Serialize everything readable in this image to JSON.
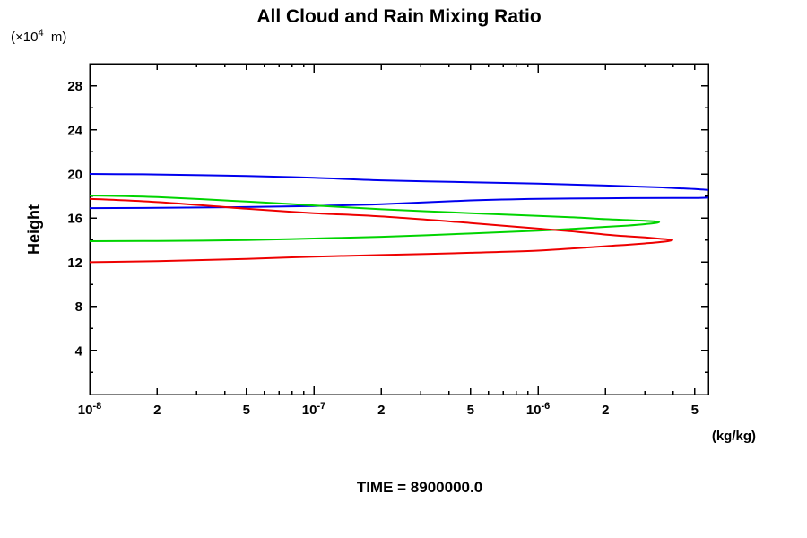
{
  "header": {
    "title": "All Cloud and Rain Mixing Ratio"
  },
  "axes": {
    "y_unit_label": "(×10^{4}  m)",
    "y_axis_label": "Height",
    "x_unit_label": "(kg/kg)"
  },
  "footer": {
    "time_label": "TIME = 8900000.0"
  },
  "chart_data": {
    "type": "line",
    "title": "All Cloud and Rain Mixing Ratio",
    "xlabel": "(kg/kg)",
    "ylabel": "Height (x10^4 m)",
    "x_scale": "log",
    "xlim": [
      1e-08,
      5.75e-06
    ],
    "ylim": [
      0,
      30
    ],
    "grid": false,
    "legend": "none",
    "x_ticks": [
      {
        "v": 1e-08,
        "label": "10^{-8}",
        "kind": "major"
      },
      {
        "v": 2e-08,
        "label": "2",
        "kind": "labeled"
      },
      {
        "v": 3e-08,
        "kind": "minor"
      },
      {
        "v": 4e-08,
        "kind": "minor"
      },
      {
        "v": 5e-08,
        "label": "5",
        "kind": "labeled"
      },
      {
        "v": 6e-08,
        "kind": "minor"
      },
      {
        "v": 7e-08,
        "kind": "minor"
      },
      {
        "v": 8e-08,
        "kind": "minor"
      },
      {
        "v": 9e-08,
        "kind": "minor"
      },
      {
        "v": 1e-07,
        "label": "10^{-7}",
        "kind": "major"
      },
      {
        "v": 2e-07,
        "label": "2",
        "kind": "labeled"
      },
      {
        "v": 3e-07,
        "kind": "minor"
      },
      {
        "v": 4e-07,
        "kind": "minor"
      },
      {
        "v": 5e-07,
        "label": "5",
        "kind": "labeled"
      },
      {
        "v": 6e-07,
        "kind": "minor"
      },
      {
        "v": 7e-07,
        "kind": "minor"
      },
      {
        "v": 8e-07,
        "kind": "minor"
      },
      {
        "v": 9e-07,
        "kind": "minor"
      },
      {
        "v": 1e-06,
        "label": "10^{-6}",
        "kind": "major"
      },
      {
        "v": 2e-06,
        "label": "2",
        "kind": "labeled"
      },
      {
        "v": 3e-06,
        "kind": "minor"
      },
      {
        "v": 4e-06,
        "kind": "minor"
      },
      {
        "v": 5e-06,
        "label": "5",
        "kind": "labeled"
      }
    ],
    "y_major_ticks": [
      {
        "v": 4,
        "label": "4"
      },
      {
        "v": 8,
        "label": "8"
      },
      {
        "v": 12,
        "label": "12"
      },
      {
        "v": 16,
        "label": "16"
      },
      {
        "v": 20,
        "label": "20"
      },
      {
        "v": 24,
        "label": "24"
      },
      {
        "v": 28,
        "label": "28"
      }
    ],
    "y_minor_ticks": [
      2,
      6,
      10,
      14,
      18,
      22,
      26
    ],
    "series": [
      {
        "name": "blue-profile",
        "color": "#0000ee",
        "points": [
          [
            1e-08,
            20.0
          ],
          [
            2e-08,
            19.95
          ],
          [
            5e-08,
            19.82
          ],
          [
            1e-07,
            19.65
          ],
          [
            2e-07,
            19.42
          ],
          [
            5e-07,
            19.25
          ],
          [
            1e-06,
            19.12
          ],
          [
            2e-06,
            18.95
          ],
          [
            3e-06,
            18.83
          ],
          [
            4e-06,
            18.73
          ],
          [
            5.7e-06,
            18.55
          ],
          [
            7.2e-06,
            18.2
          ],
          [
            5.7e-06,
            17.85
          ],
          [
            4e-06,
            17.83
          ],
          [
            2e-06,
            17.8
          ],
          [
            1e-06,
            17.75
          ],
          [
            5e-07,
            17.6
          ],
          [
            2e-07,
            17.25
          ],
          [
            1e-07,
            17.1
          ],
          [
            5e-08,
            17.0
          ],
          [
            2e-08,
            16.93
          ],
          [
            1e-08,
            16.9
          ]
        ]
      },
      {
        "name": "green-profile",
        "color": "#00d400",
        "points": [
          [
            1e-08,
            18.05
          ],
          [
            2e-08,
            17.9
          ],
          [
            5e-08,
            17.5
          ],
          [
            1e-07,
            17.15
          ],
          [
            2e-07,
            16.8
          ],
          [
            5e-07,
            16.45
          ],
          [
            1e-06,
            16.2
          ],
          [
            1.5e-06,
            16.05
          ],
          [
            2e-06,
            15.9
          ],
          [
            2.5e-06,
            15.82
          ],
          [
            3e-06,
            15.75
          ],
          [
            3.47e-06,
            15.63
          ],
          [
            3e-06,
            15.45
          ],
          [
            2.5e-06,
            15.32
          ],
          [
            2e-06,
            15.2
          ],
          [
            1.5e-06,
            15.05
          ],
          [
            1e-06,
            14.85
          ],
          [
            5e-07,
            14.6
          ],
          [
            2e-07,
            14.3
          ],
          [
            1e-07,
            14.15
          ],
          [
            5e-08,
            14.0
          ],
          [
            2e-08,
            13.93
          ],
          [
            1e-08,
            13.9
          ]
        ]
      },
      {
        "name": "red-profile",
        "color": "#ee0000",
        "points": [
          [
            1e-08,
            17.75
          ],
          [
            2e-08,
            17.45
          ],
          [
            5e-08,
            16.85
          ],
          [
            1e-07,
            16.45
          ],
          [
            2e-07,
            16.15
          ],
          [
            5e-07,
            15.55
          ],
          [
            1e-06,
            15.05
          ],
          [
            1.5e-06,
            14.75
          ],
          [
            2e-06,
            14.5
          ],
          [
            2.5e-06,
            14.35
          ],
          [
            3e-06,
            14.25
          ],
          [
            3.5e-06,
            14.13
          ],
          [
            3.98e-06,
            14.0
          ],
          [
            3.5e-06,
            13.82
          ],
          [
            3e-06,
            13.7
          ],
          [
            2.5e-06,
            13.58
          ],
          [
            2e-06,
            13.45
          ],
          [
            1.5e-06,
            13.28
          ],
          [
            1e-06,
            13.05
          ],
          [
            5e-07,
            12.85
          ],
          [
            2e-07,
            12.65
          ],
          [
            1e-07,
            12.5
          ],
          [
            5e-08,
            12.3
          ],
          [
            2e-08,
            12.1
          ],
          [
            1e-08,
            12.0
          ]
        ]
      }
    ]
  }
}
